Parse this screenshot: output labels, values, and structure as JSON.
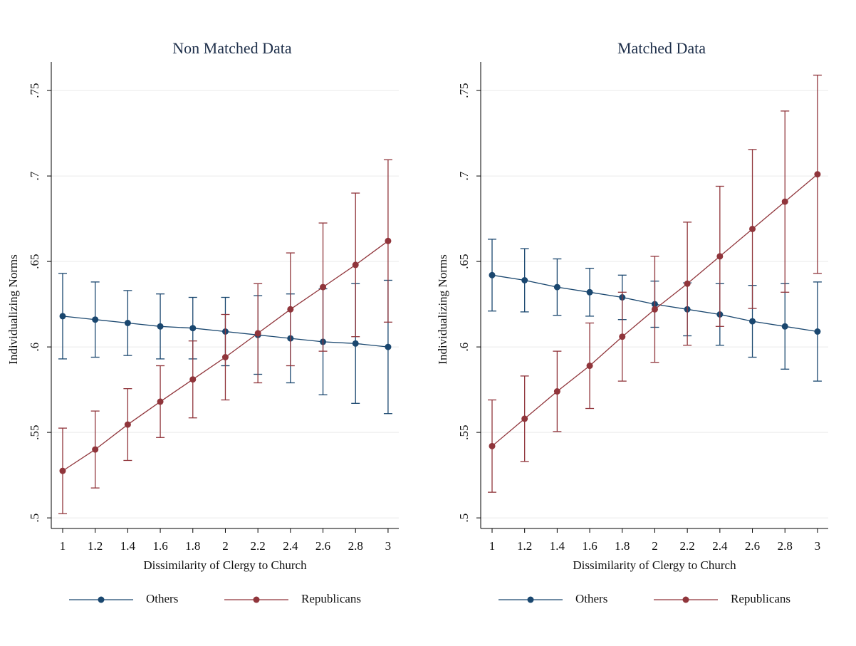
{
  "chart_data": [
    {
      "type": "line",
      "title": "Non Matched Data",
      "x_label": "Dissimilarity of Clergy to Church",
      "y_label": "Individualizing Norms",
      "x": [
        1,
        1.2,
        1.4,
        1.6,
        1.8,
        2,
        2.2,
        2.4,
        2.6,
        2.8,
        3
      ],
      "series": [
        {
          "name": "Others",
          "color": "#1a476f",
          "values": [
            0.618,
            0.616,
            0.614,
            0.612,
            0.611,
            0.609,
            0.607,
            0.605,
            0.603,
            0.602,
            0.6
          ],
          "errors": [
            0.025,
            0.022,
            0.019,
            0.019,
            0.018,
            0.02,
            0.023,
            0.026,
            0.031,
            0.035,
            0.039
          ]
        },
        {
          "name": "Republicans",
          "color": "#90353b",
          "values": [
            0.5275,
            0.54,
            0.5546,
            0.568,
            0.581,
            0.594,
            0.608,
            0.622,
            0.635,
            0.648,
            0.662
          ],
          "errors": [
            0.025,
            0.0225,
            0.021,
            0.021,
            0.0225,
            0.025,
            0.029,
            0.033,
            0.0375,
            0.042,
            0.0475
          ]
        }
      ],
      "xlim": [
        0.93,
        3.066
      ],
      "ylim": [
        0.4938,
        0.7667
      ],
      "xticks": [
        1,
        1.2,
        1.4,
        1.6,
        1.8,
        2,
        2.2,
        2.4,
        2.6,
        2.8,
        3
      ],
      "yticks": [
        {
          "value": 0.5,
          "label": ".5"
        },
        {
          "value": 0.55,
          "label": ".55"
        },
        {
          "value": 0.6,
          "label": ".6"
        },
        {
          "value": 0.65,
          "label": ".65"
        },
        {
          "value": 0.7,
          "label": ".7"
        },
        {
          "value": 0.75,
          "label": ".75"
        }
      ],
      "grid": true,
      "legend": "bottom"
    },
    {
      "type": "line",
      "title": "Matched Data",
      "x_label": "Dissimilarity of Clergy to Church",
      "y_label": "Individualizing Norms",
      "x": [
        1,
        1.2,
        1.4,
        1.6,
        1.8,
        2,
        2.2,
        2.4,
        2.6,
        2.8,
        3
      ],
      "series": [
        {
          "name": "Others",
          "color": "#1a476f",
          "values": [
            0.642,
            0.639,
            0.635,
            0.632,
            0.629,
            0.625,
            0.622,
            0.619,
            0.615,
            0.612,
            0.609
          ],
          "errors": [
            0.021,
            0.0185,
            0.0165,
            0.014,
            0.013,
            0.0135,
            0.0155,
            0.018,
            0.021,
            0.025,
            0.029
          ]
        },
        {
          "name": "Republicans",
          "color": "#90353b",
          "values": [
            0.542,
            0.558,
            0.574,
            0.589,
            0.606,
            0.622,
            0.637,
            0.653,
            0.669,
            0.685,
            0.701
          ],
          "errors": [
            0.027,
            0.025,
            0.0235,
            0.025,
            0.026,
            0.031,
            0.036,
            0.041,
            0.0465,
            0.053,
            0.058
          ]
        }
      ],
      "xlim": [
        0.93,
        3.066
      ],
      "ylim": [
        0.4938,
        0.7667
      ],
      "xticks": [
        1,
        1.2,
        1.4,
        1.6,
        1.8,
        2,
        2.2,
        2.4,
        2.6,
        2.8,
        3
      ],
      "yticks": [
        {
          "value": 0.5,
          "label": ".5"
        },
        {
          "value": 0.55,
          "label": ".55"
        },
        {
          "value": 0.6,
          "label": ".6"
        },
        {
          "value": 0.65,
          "label": ".65"
        },
        {
          "value": 0.7,
          "label": ".7"
        },
        {
          "value": 0.75,
          "label": ".75"
        }
      ],
      "grid": true,
      "legend": "bottom"
    }
  ]
}
